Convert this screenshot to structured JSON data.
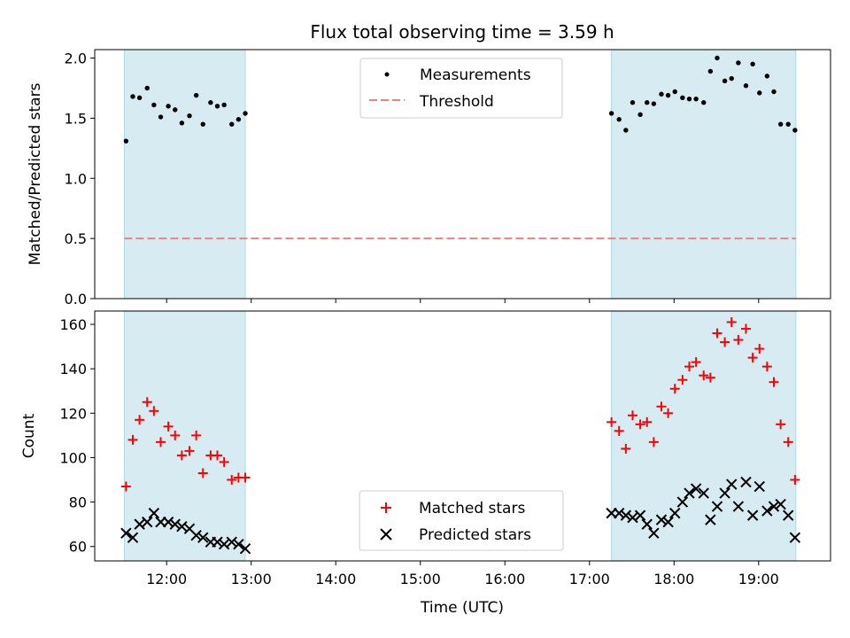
{
  "chart_data": {
    "title": "Flux total observing time = 3.59 h",
    "xlabel": "Time (UTC)",
    "xlim_hours": [
      11.15,
      19.85
    ],
    "xticks": [
      {
        "value": 12,
        "label": "12:00"
      },
      {
        "value": 13,
        "label": "13:00"
      },
      {
        "value": 14,
        "label": "14:00"
      },
      {
        "value": 15,
        "label": "15:00"
      },
      {
        "value": 16,
        "label": "16:00"
      },
      {
        "value": 17,
        "label": "17:00"
      },
      {
        "value": 18,
        "label": "18:00"
      },
      {
        "value": 19,
        "label": "19:00"
      }
    ],
    "colors": {
      "band": "#add8e6",
      "matched": "#ff0000",
      "predicted": "#000000",
      "threshold": "#f08080",
      "measurement": "#000000"
    },
    "shaded_intervals": [
      [
        11.5,
        12.93
      ],
      [
        17.26,
        19.44
      ]
    ],
    "top_panel": {
      "type": "scatter",
      "ylabel": "Matched/Predicted stars",
      "ylim": [
        0,
        2.07
      ],
      "yticks": [
        {
          "value": 0.0,
          "label": "0.0"
        },
        {
          "value": 0.5,
          "label": "0.5"
        },
        {
          "value": 1.0,
          "label": "1.0"
        },
        {
          "value": 1.5,
          "label": "1.5"
        },
        {
          "value": 2.0,
          "label": "2.0"
        }
      ],
      "legend": {
        "placement": "upper center",
        "items": [
          "Measurements",
          "Threshold"
        ]
      },
      "threshold": {
        "name": "Threshold",
        "value": 0.5
      },
      "measurements": {
        "name": "Measurements",
        "x": [
          11.52,
          11.6,
          11.68,
          11.77,
          11.85,
          11.93,
          12.02,
          12.1,
          12.18,
          12.27,
          12.35,
          12.43,
          12.52,
          12.6,
          12.68,
          12.77,
          12.85,
          12.93,
          17.26,
          17.35,
          17.43,
          17.51,
          17.6,
          17.68,
          17.76,
          17.85,
          17.93,
          18.01,
          18.1,
          18.18,
          18.26,
          18.35,
          18.43,
          18.51,
          18.6,
          18.68,
          18.76,
          18.85,
          18.93,
          19.01,
          19.1,
          19.18,
          19.26,
          19.35,
          19.43
        ],
        "y": [
          1.31,
          1.68,
          1.67,
          1.75,
          1.61,
          1.51,
          1.6,
          1.57,
          1.46,
          1.52,
          1.69,
          1.45,
          1.63,
          1.6,
          1.61,
          1.45,
          1.49,
          1.54,
          1.54,
          1.49,
          1.4,
          1.63,
          1.53,
          1.63,
          1.62,
          1.7,
          1.69,
          1.72,
          1.67,
          1.66,
          1.66,
          1.63,
          1.89,
          2.0,
          1.81,
          1.83,
          1.96,
          1.77,
          1.95,
          1.71,
          1.85,
          1.72,
          1.45,
          1.45,
          1.4
        ]
      }
    },
    "bottom_panel": {
      "type": "scatter",
      "ylabel": "Count",
      "ylim": [
        53.5,
        166
      ],
      "yticks": [
        {
          "value": 60,
          "label": "60"
        },
        {
          "value": 80,
          "label": "80"
        },
        {
          "value": 100,
          "label": "100"
        },
        {
          "value": 120,
          "label": "120"
        },
        {
          "value": 140,
          "label": "140"
        },
        {
          "value": 160,
          "label": "160"
        }
      ],
      "legend": {
        "placement": "lower center",
        "items": [
          "Matched stars",
          "Predicted stars"
        ]
      },
      "matched": {
        "name": "Matched stars",
        "x": [
          11.52,
          11.6,
          11.68,
          11.77,
          11.85,
          11.93,
          12.02,
          12.1,
          12.18,
          12.27,
          12.35,
          12.43,
          12.52,
          12.6,
          12.68,
          12.77,
          12.85,
          12.93,
          17.26,
          17.35,
          17.43,
          17.51,
          17.6,
          17.68,
          17.76,
          17.85,
          17.93,
          18.01,
          18.1,
          18.18,
          18.26,
          18.35,
          18.43,
          18.51,
          18.6,
          18.68,
          18.76,
          18.85,
          18.93,
          19.01,
          19.1,
          19.18,
          19.26,
          19.35,
          19.43
        ],
        "y": [
          87,
          108,
          117,
          125,
          121,
          107,
          114,
          110,
          101,
          103,
          110,
          93,
          101,
          101,
          98,
          90,
          91,
          91,
          116,
          112,
          104,
          119,
          115,
          116,
          107,
          123,
          120,
          131,
          135,
          141,
          143,
          137,
          136,
          156,
          152,
          161,
          153,
          158,
          145,
          149,
          141,
          134,
          115,
          107,
          90
        ]
      },
      "predicted": {
        "name": "Predicted stars",
        "x": [
          11.52,
          11.6,
          11.68,
          11.77,
          11.85,
          11.93,
          12.02,
          12.1,
          12.18,
          12.27,
          12.35,
          12.43,
          12.52,
          12.6,
          12.68,
          12.77,
          12.85,
          12.93,
          17.26,
          17.35,
          17.43,
          17.51,
          17.6,
          17.68,
          17.76,
          17.85,
          17.93,
          18.01,
          18.1,
          18.18,
          18.26,
          18.35,
          18.43,
          18.51,
          18.6,
          18.68,
          18.76,
          18.85,
          18.93,
          19.01,
          19.1,
          19.18,
          19.26,
          19.35,
          19.43
        ],
        "y": [
          66,
          64,
          70,
          71,
          75,
          71,
          71,
          70,
          69,
          68,
          65,
          64,
          62,
          62,
          61,
          62,
          61,
          59,
          75,
          75,
          74,
          73,
          74,
          70,
          66,
          72,
          71,
          75,
          80,
          84,
          86,
          84,
          72,
          78,
          84,
          88,
          78,
          89,
          74,
          87,
          76,
          78,
          79,
          74,
          64
        ]
      }
    }
  }
}
